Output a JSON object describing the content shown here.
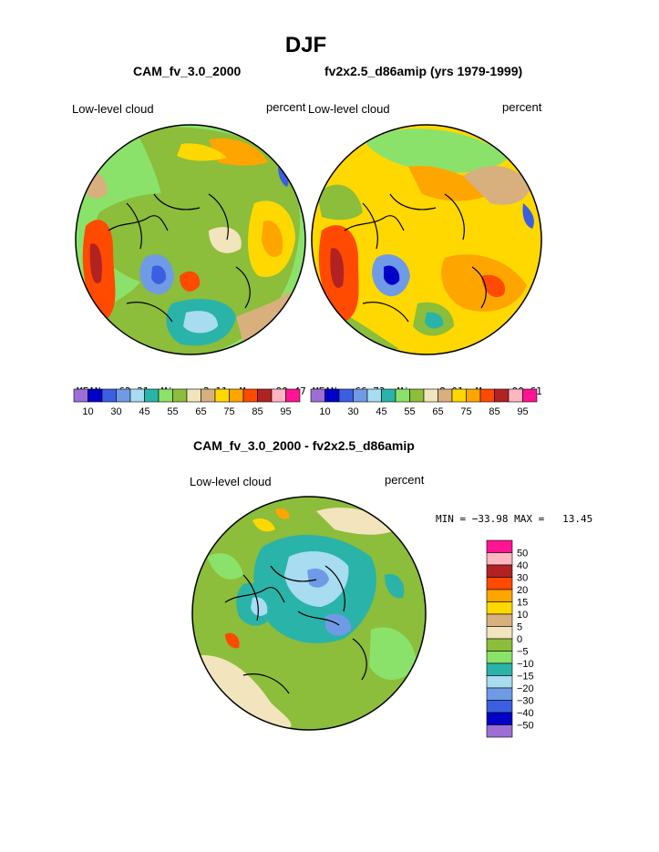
{
  "page_title": "DJF",
  "panels": [
    {
      "model_title": "CAM_fv_3.0_2000",
      "variable_label": "Low-level cloud",
      "units": "percent",
      "stats": {
        "mean_label": "MEAN=",
        "mean": "62.21",
        "min_label": "Min=",
        "min": "2.11",
        "max_label": "Max=",
        "max": "90.47"
      }
    },
    {
      "model_title": "fv2x2.5_d86amip (yrs 1979-1999)",
      "variable_label": "Low-level cloud",
      "units": "percent",
      "stats": {
        "mean_label": "MEAN=",
        "mean": "66.73",
        "min_label": "Min=",
        "min": "8.01",
        "max_label": "Max=",
        "max": "90.61"
      }
    }
  ],
  "colorbar_top": {
    "colors": [
      "#9b6fd6",
      "#0000c8",
      "#3a5fe0",
      "#6f9be6",
      "#a8dcf0",
      "#2ab3a9",
      "#8be26a",
      "#8cbd3b",
      "#f2e4bd",
      "#d7b07e",
      "#ffd800",
      "#ffa500",
      "#ff4a00",
      "#b22222",
      "#ffb6c1",
      "#ff1493"
    ],
    "tick_labels": [
      "10",
      "30",
      "45",
      "55",
      "65",
      "75",
      "85",
      "95"
    ]
  },
  "difference": {
    "title": "CAM_fv_3.0_2000 - fv2x2.5_d86amip",
    "variable_label": "Low-level cloud",
    "units": "percent",
    "min_max_text": "MIN = −33.98 MAX =   13.45",
    "colorbar": {
      "colors": [
        "#ff1493",
        "#ffb6c1",
        "#b22222",
        "#ff4a00",
        "#ffa500",
        "#ffd800",
        "#d7b07e",
        "#f2e4bd",
        "#8cbd3b",
        "#8be26a",
        "#2ab3a9",
        "#a8dcf0",
        "#6f9be6",
        "#3a5fe0",
        "#0000c8",
        "#9b6fd6"
      ],
      "tick_labels": [
        "50",
        "40",
        "30",
        "20",
        "15",
        "10",
        "5",
        "0",
        "−5",
        "−10",
        "−15",
        "−20",
        "−30",
        "−40",
        "−50"
      ]
    }
  }
}
